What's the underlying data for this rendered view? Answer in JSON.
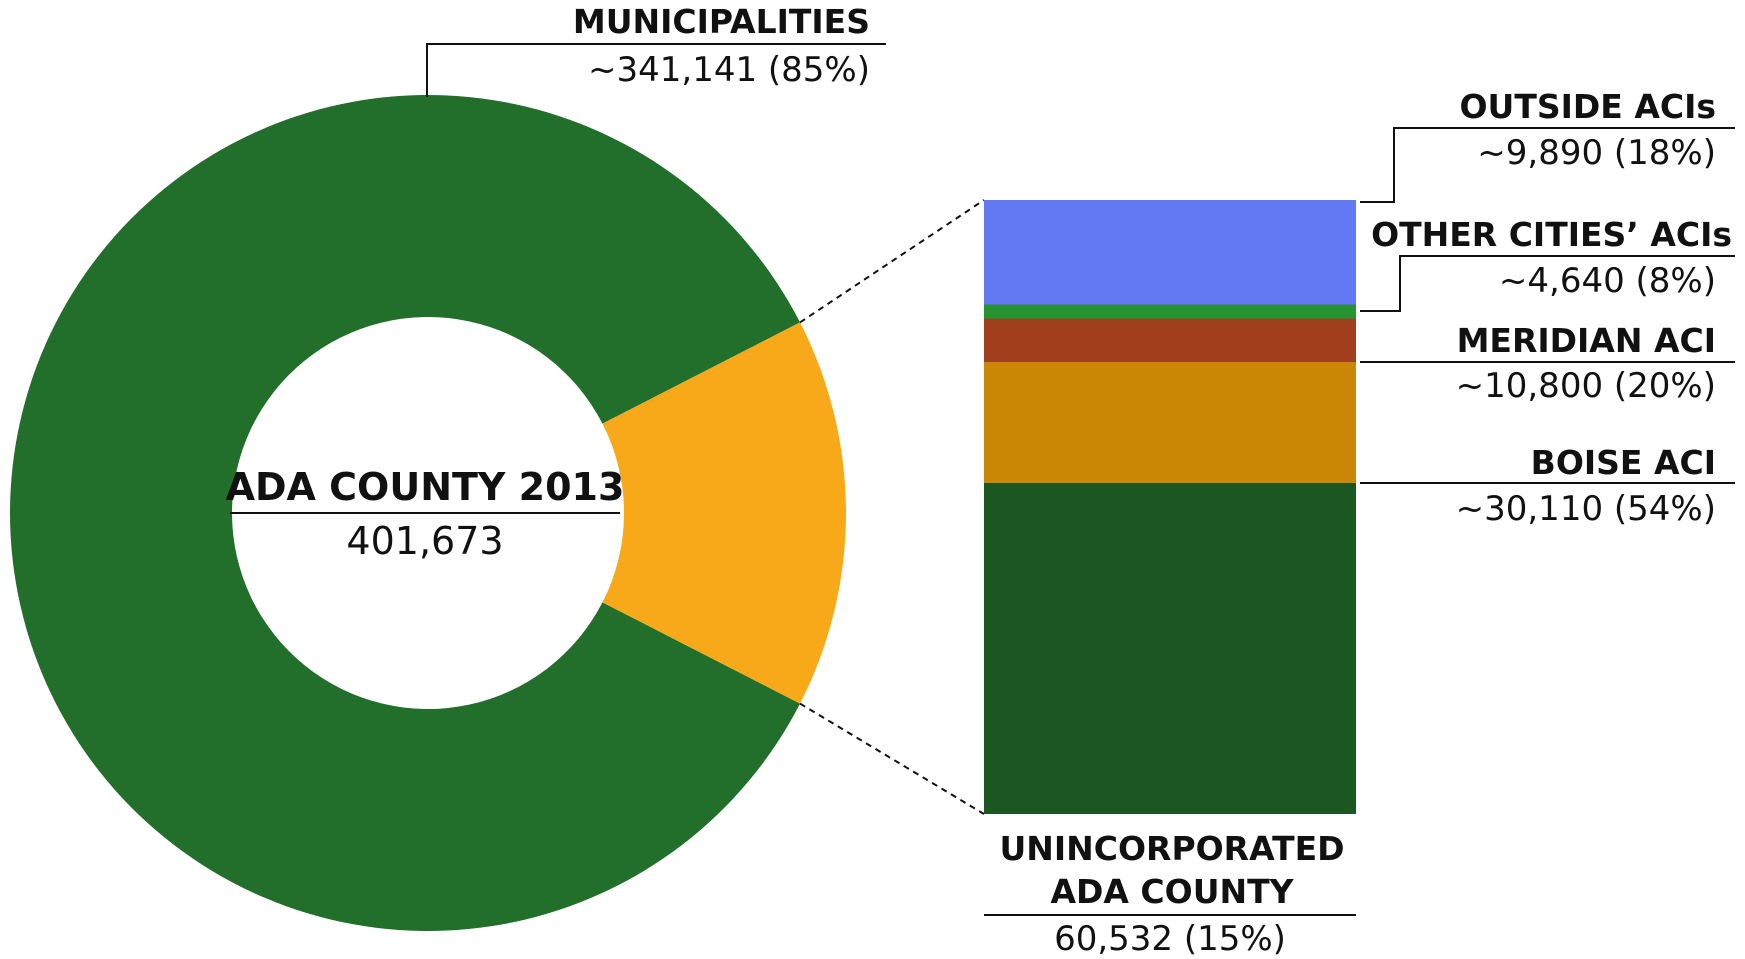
{
  "chart_data": [
    {
      "type": "pie",
      "center_title": "ADA COUNTY 2013",
      "center_value": "401,673",
      "slices": [
        {
          "title": "MUNICIPALITIES",
          "label": "~341,141 (85%)",
          "value": 341141,
          "color": "#216f2b"
        },
        {
          "title": "UNINCORPORATED ADA COUNTY",
          "title_lines": [
            "UNINCORPORATED",
            "ADA COUNTY"
          ],
          "label": "60,532 (15%)",
          "value": 60532,
          "color": "#f8a919"
        }
      ]
    },
    {
      "type": "bar",
      "stacked": true,
      "segments": [
        {
          "title": "BOISE ACI",
          "label": "~30,110 (54%)",
          "value": 30110,
          "color": "#cb8706"
        },
        {
          "title": "MERIDIAN ACI",
          "label": "~10,800 (20%)",
          "value": 10800,
          "color": "#a13e1b"
        },
        {
          "title": "OTHER CITIES’ ACIs",
          "label": "~4,640 (8%)",
          "value": 4640,
          "color": "#259431"
        },
        {
          "title": "OUTSIDE ACIs",
          "label": "~9,890 (18%)",
          "value": 9890,
          "color": "#6379f4"
        }
      ],
      "base_color": "#1b5720"
    }
  ]
}
